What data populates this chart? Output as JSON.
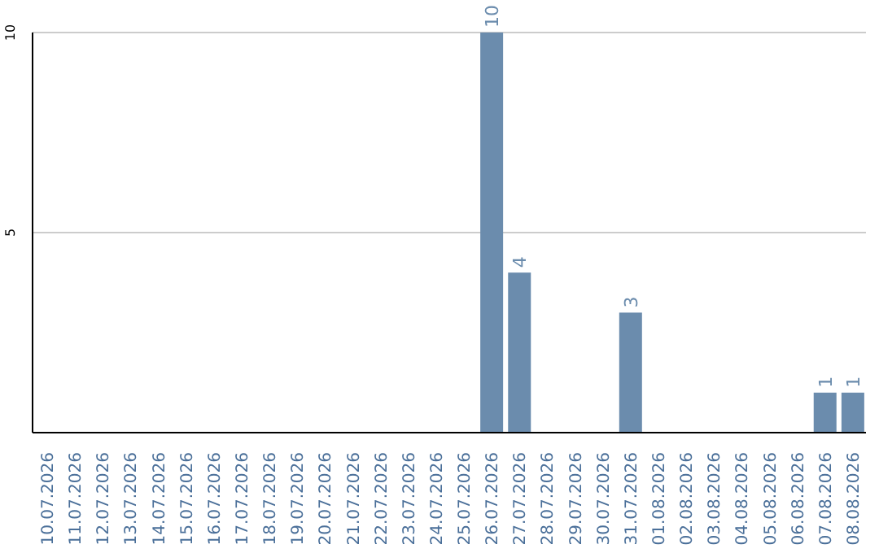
{
  "chart_data": {
    "type": "bar",
    "categories": [
      "10.07.2026",
      "11.07.2026",
      "12.07.2026",
      "13.07.2026",
      "14.07.2026",
      "15.07.2026",
      "16.07.2026",
      "17.07.2026",
      "18.07.2026",
      "19.07.2026",
      "20.07.2026",
      "21.07.2026",
      "22.07.2026",
      "23.07.2026",
      "24.07.2026",
      "25.07.2026",
      "26.07.2026",
      "27.07.2026",
      "28.07.2026",
      "29.07.2026",
      "30.07.2026",
      "31.07.2026",
      "01.08.2026",
      "02.08.2026",
      "03.08.2026",
      "04.08.2026",
      "05.08.2026",
      "06.08.2026",
      "07.08.2026",
      "08.08.2026"
    ],
    "values": [
      0,
      0,
      0,
      0,
      0,
      0,
      0,
      0,
      0,
      0,
      0,
      0,
      0,
      0,
      0,
      0,
      10,
      4,
      0,
      0,
      0,
      3,
      0,
      0,
      0,
      0,
      0,
      0,
      1,
      1
    ],
    "value_labels": [
      null,
      null,
      null,
      null,
      null,
      null,
      null,
      null,
      null,
      null,
      null,
      null,
      null,
      null,
      null,
      null,
      "10",
      "4",
      null,
      null,
      null,
      "3",
      null,
      null,
      null,
      null,
      null,
      null,
      "1",
      "1"
    ],
    "color": "#6b8cad",
    "ylim": [
      0,
      10
    ],
    "yticks": [
      5,
      10
    ],
    "grid": "y"
  }
}
